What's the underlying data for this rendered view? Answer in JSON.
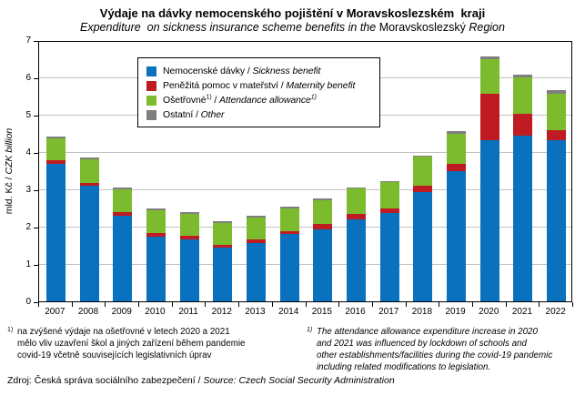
{
  "header": {
    "title": "Výdaje na dávky nemocenského pojištění v Moravskoslezském  kraji",
    "subtitle": {
      "italic1": "Expenditure  on sickness insurance scheme benefits in the",
      "normal": "Moravskoslezský",
      "italic2": "Region"
    }
  },
  "y_axis": {
    "label_cs": "mld. Kč /",
    "label_en": "CZK billion",
    "ticks": [
      0,
      1,
      2,
      3,
      4,
      5,
      6,
      7
    ]
  },
  "legend": {
    "items": [
      {
        "name": "sickness",
        "label_cs": "Nemocenské dávky",
        "sup_cs": "",
        "label_en": "Sickness benefit",
        "sup_en": "",
        "color": "#0971BE"
      },
      {
        "name": "maternity",
        "label_cs": "Peněžitá pomoc v mateřství",
        "sup_cs": "",
        "label_en": "Maternity benefit",
        "sup_en": "",
        "color": "#BE1B22"
      },
      {
        "name": "attendance",
        "label_cs": "Ošetřovné",
        "sup_cs": "1)",
        "label_en": "Attendance allowance",
        "sup_en": "1)",
        "color": "#7DBB2E"
      },
      {
        "name": "other",
        "label_cs": "Ostatní",
        "sup_cs": "",
        "label_en": "Other",
        "sup_en": "",
        "color": "#7F7F7F"
      }
    ]
  },
  "chart_data": {
    "type": "bar",
    "stacked": true,
    "title": "Výdaje na dávky nemocenského pojištění v Moravskoslezském kraji / Expenditure on sickness insurance scheme benefits in the Moravskoslezský Region",
    "xlabel": "",
    "ylabel": "mld. Kč / CZK billion",
    "ylim": [
      0,
      7
    ],
    "grid": true,
    "legend_position": "inside-upper-left",
    "categories": [
      "2007",
      "2008",
      "2009",
      "2010",
      "2011",
      "2012",
      "2013",
      "2014",
      "2015",
      "2016",
      "2017",
      "2018",
      "2019",
      "2020",
      "2021",
      "2022"
    ],
    "series": [
      {
        "name": "Nemocenské dávky / Sickness benefit",
        "color": "#0971BE",
        "values": [
          3.69,
          3.09,
          2.3,
          1.74,
          1.66,
          1.43,
          1.55,
          1.81,
          1.93,
          2.19,
          2.36,
          2.93,
          3.48,
          4.32,
          4.44,
          4.32
        ]
      },
      {
        "name": "Peněžitá pomoc v mateřství / Maternity benefit",
        "color": "#BE1B22",
        "values": [
          0.1,
          0.09,
          0.08,
          0.08,
          0.09,
          0.08,
          0.1,
          0.08,
          0.15,
          0.16,
          0.14,
          0.17,
          0.21,
          1.25,
          0.59,
          0.27
        ]
      },
      {
        "name": "Ošetřovné / Attendance allowance",
        "color": "#7DBB2E",
        "values": [
          0.58,
          0.63,
          0.62,
          0.62,
          0.6,
          0.59,
          0.6,
          0.61,
          0.63,
          0.67,
          0.7,
          0.77,
          0.81,
          0.93,
          0.97,
          0.98
        ]
      },
      {
        "name": "Ostatní / Other",
        "color": "#7F7F7F",
        "values": [
          0.05,
          0.04,
          0.05,
          0.05,
          0.05,
          0.05,
          0.04,
          0.04,
          0.04,
          0.04,
          0.03,
          0.04,
          0.07,
          0.07,
          0.07,
          0.08
        ]
      }
    ]
  },
  "footnotes": {
    "cs": {
      "sup": "1)",
      "text": "na zvýšené výdaje na ošetřovné v letech 2020 a 2021\nmělo vliv uzavření škol a jiných zařízení během pandemie\ncovid-19 včetně souvisejících legislativních úprav"
    },
    "en": {
      "sup": "1)",
      "text": "The attendance allowance expenditure increase in 2020\nand 2021 was influenced by lockdown of schools and\nother establishments/facilities during the covid-19 pandemic\nincluding related modifications to legislation."
    }
  },
  "source": {
    "cs": "Zdroj: Česká správa sociálního zabezpečení /",
    "en": "Source: Czech Social Security Administration"
  },
  "colors": {
    "sickness": "#0971BE",
    "maternity": "#BE1B22",
    "attendance": "#7DBB2E",
    "other": "#7F7F7F",
    "gridline": "#C2C2C2"
  }
}
